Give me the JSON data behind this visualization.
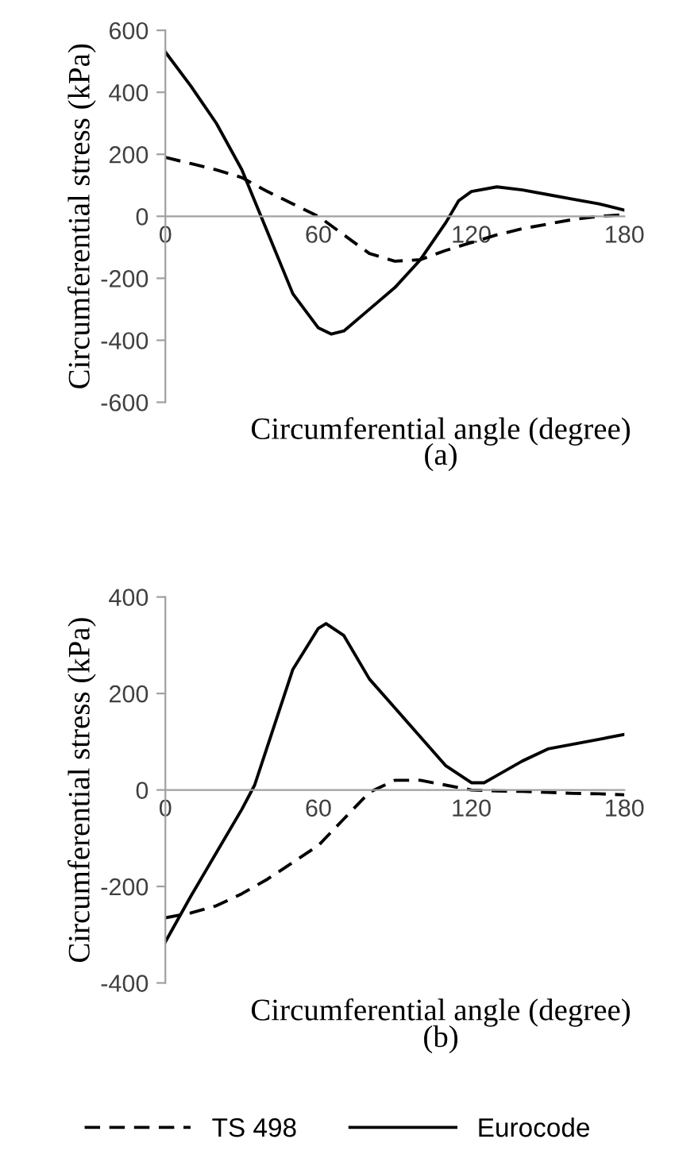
{
  "chart_data": [
    {
      "type": "line",
      "xlabel": "Circumferential angle (degree)",
      "ylabel": "Circumferential stress (kPa)",
      "annotations": [
        "(a)"
      ],
      "xlim": [
        0,
        180
      ],
      "xticks": [
        0,
        60,
        120,
        180
      ],
      "ylim": [
        -600,
        600
      ],
      "yticks": [
        -600,
        -400,
        -200,
        0,
        200,
        400,
        600
      ],
      "grid": false,
      "legend": false,
      "series": [
        {
          "color": "#000000",
          "line_style": "dashed",
          "x": [
            0,
            10,
            20,
            30,
            40,
            50,
            60,
            70,
            80,
            90,
            100,
            110,
            120,
            130,
            140,
            150,
            160,
            170,
            180
          ],
          "values": [
            190,
            170,
            150,
            125,
            80,
            40,
            0,
            -60,
            -120,
            -145,
            -140,
            -110,
            -85,
            -60,
            -40,
            -25,
            -10,
            0,
            5
          ]
        },
        {
          "color": "#000000",
          "line_style": "solid",
          "x": [
            0,
            10,
            20,
            30,
            40,
            50,
            60,
            65,
            70,
            80,
            90,
            100,
            110,
            115,
            120,
            130,
            140,
            150,
            160,
            170,
            180
          ],
          "values": [
            530,
            420,
            300,
            150,
            -50,
            -250,
            -360,
            -380,
            -370,
            -300,
            -230,
            -140,
            -20,
            50,
            80,
            95,
            85,
            70,
            55,
            40,
            20
          ]
        }
      ]
    },
    {
      "type": "line",
      "xlabel": "Circumferential angle (degree)",
      "ylabel": "Circumferential stress (kPa)",
      "annotations": [
        "(b)"
      ],
      "xlim": [
        0,
        180
      ],
      "xticks": [
        0,
        60,
        120,
        180
      ],
      "ylim": [
        -400,
        400
      ],
      "yticks": [
        -400,
        -200,
        0,
        200,
        400
      ],
      "grid": false,
      "legend": "bottom",
      "series": [
        {
          "name": "TS 498",
          "color": "#000000",
          "line_style": "dashed",
          "x": [
            0,
            10,
            20,
            30,
            40,
            50,
            60,
            70,
            80,
            90,
            100,
            110,
            120,
            130,
            140,
            150,
            160,
            170,
            180
          ],
          "values": [
            -265,
            -255,
            -240,
            -215,
            -185,
            -150,
            -115,
            -60,
            -5,
            20,
            20,
            10,
            0,
            -2,
            -3,
            -5,
            -7,
            -8,
            -10
          ]
        },
        {
          "name": "Eurocode",
          "color": "#000000",
          "line_style": "solid",
          "x": [
            0,
            10,
            20,
            30,
            35,
            40,
            50,
            60,
            63,
            70,
            80,
            90,
            100,
            110,
            120,
            125,
            130,
            140,
            150,
            160,
            170,
            180
          ],
          "values": [
            -315,
            -220,
            -130,
            -40,
            10,
            90,
            250,
            335,
            345,
            320,
            230,
            170,
            110,
            50,
            15,
            15,
            30,
            60,
            85,
            95,
            105,
            115
          ]
        }
      ]
    }
  ]
}
